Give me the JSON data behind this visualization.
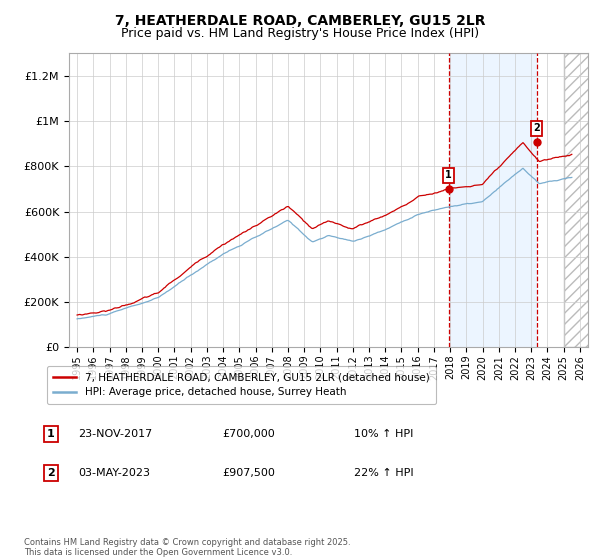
{
  "title": "7, HEATHERDALE ROAD, CAMBERLEY, GU15 2LR",
  "subtitle": "Price paid vs. HM Land Registry's House Price Index (HPI)",
  "title_fontsize": 10,
  "subtitle_fontsize": 9,
  "ylim": [
    0,
    1300000
  ],
  "yticks": [
    0,
    200000,
    400000,
    600000,
    800000,
    1000000,
    1200000
  ],
  "ytick_labels": [
    "£0",
    "£200K",
    "£400K",
    "£600K",
    "£800K",
    "£1M",
    "£1.2M"
  ],
  "xlim_start": 1994.5,
  "xlim_end": 2026.5,
  "xtick_years": [
    1995,
    1996,
    1997,
    1998,
    1999,
    2000,
    2001,
    2002,
    2003,
    2004,
    2005,
    2006,
    2007,
    2008,
    2009,
    2010,
    2011,
    2012,
    2013,
    2014,
    2015,
    2016,
    2017,
    2018,
    2019,
    2020,
    2021,
    2022,
    2023,
    2024,
    2025,
    2026
  ],
  "sale1_x": 2017.9,
  "sale1_y": 700000,
  "sale1_label": "1",
  "sale2_x": 2023.33,
  "sale2_y": 907500,
  "sale2_label": "2",
  "legend_line1_label": "7, HEATHERDALE ROAD, CAMBERLEY, GU15 2LR (detached house)",
  "legend_line1_color": "#cc0000",
  "legend_line2_label": "HPI: Average price, detached house, Surrey Heath",
  "legend_line2_color": "#7aadcf",
  "marker_box_color": "#cc0000",
  "info_rows": [
    {
      "num": "1",
      "date": "23-NOV-2017",
      "price": "£700,000",
      "hpi": "10% ↑ HPI"
    },
    {
      "num": "2",
      "date": "03-MAY-2023",
      "price": "£907,500",
      "hpi": "22% ↑ HPI"
    }
  ],
  "footnote": "Contains HM Land Registry data © Crown copyright and database right 2025.\nThis data is licensed under the Open Government Licence v3.0.",
  "bg_color": "#ffffff",
  "plot_bg_color": "#ffffff",
  "grid_color": "#cccccc",
  "shade_color": "#ddeeff",
  "future_start": 2025.0,
  "noise_seed_hpi": 10,
  "noise_seed_red": 20
}
